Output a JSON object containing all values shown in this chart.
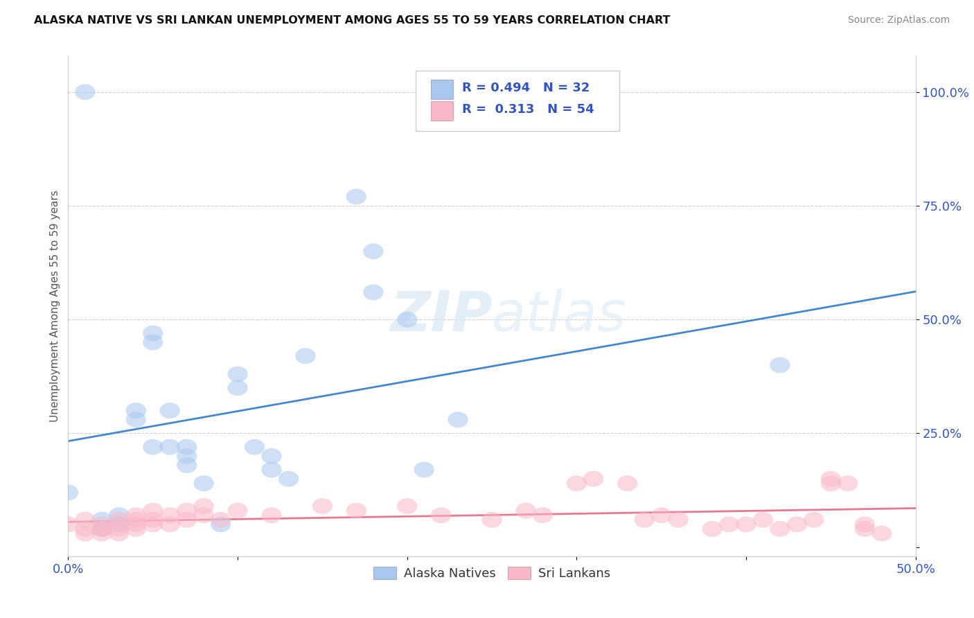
{
  "title": "ALASKA NATIVE VS SRI LANKAN UNEMPLOYMENT AMONG AGES 55 TO 59 YEARS CORRELATION CHART",
  "source": "Source: ZipAtlas.com",
  "ylabel": "Unemployment Among Ages 55 to 59 years",
  "xlim": [
    0.0,
    0.5
  ],
  "ylim": [
    -0.02,
    1.08
  ],
  "alaska_R": 0.494,
  "alaska_N": 32,
  "srilanka_R": 0.313,
  "srilanka_N": 54,
  "alaska_color": "#a8c8f0",
  "srilanka_color": "#f8b8c8",
  "alaska_line_color": "#4488cc",
  "srilanka_line_color": "#e87890",
  "alaska_points": [
    [
      0.01,
      1.0
    ],
    [
      0.0,
      0.12
    ],
    [
      0.02,
      0.06
    ],
    [
      0.02,
      0.04
    ],
    [
      0.03,
      0.05
    ],
    [
      0.03,
      0.07
    ],
    [
      0.04,
      0.28
    ],
    [
      0.04,
      0.3
    ],
    [
      0.05,
      0.47
    ],
    [
      0.05,
      0.45
    ],
    [
      0.05,
      0.22
    ],
    [
      0.06,
      0.22
    ],
    [
      0.06,
      0.3
    ],
    [
      0.07,
      0.2
    ],
    [
      0.07,
      0.22
    ],
    [
      0.07,
      0.18
    ],
    [
      0.08,
      0.14
    ],
    [
      0.09,
      0.05
    ],
    [
      0.1,
      0.38
    ],
    [
      0.1,
      0.35
    ],
    [
      0.11,
      0.22
    ],
    [
      0.12,
      0.2
    ],
    [
      0.12,
      0.17
    ],
    [
      0.13,
      0.15
    ],
    [
      0.14,
      0.42
    ],
    [
      0.17,
      0.77
    ],
    [
      0.18,
      0.65
    ],
    [
      0.18,
      0.56
    ],
    [
      0.2,
      0.5
    ],
    [
      0.21,
      0.17
    ],
    [
      0.23,
      0.28
    ],
    [
      0.42,
      0.4
    ]
  ],
  "srilanka_points": [
    [
      0.0,
      0.05
    ],
    [
      0.01,
      0.04
    ],
    [
      0.01,
      0.03
    ],
    [
      0.01,
      0.06
    ],
    [
      0.02,
      0.04
    ],
    [
      0.02,
      0.05
    ],
    [
      0.02,
      0.03
    ],
    [
      0.02,
      0.04
    ],
    [
      0.03,
      0.06
    ],
    [
      0.03,
      0.04
    ],
    [
      0.03,
      0.05
    ],
    [
      0.03,
      0.03
    ],
    [
      0.04,
      0.07
    ],
    [
      0.04,
      0.05
    ],
    [
      0.04,
      0.04
    ],
    [
      0.04,
      0.06
    ],
    [
      0.05,
      0.08
    ],
    [
      0.05,
      0.06
    ],
    [
      0.05,
      0.05
    ],
    [
      0.06,
      0.07
    ],
    [
      0.06,
      0.05
    ],
    [
      0.07,
      0.08
    ],
    [
      0.07,
      0.06
    ],
    [
      0.08,
      0.09
    ],
    [
      0.08,
      0.07
    ],
    [
      0.09,
      0.06
    ],
    [
      0.1,
      0.08
    ],
    [
      0.12,
      0.07
    ],
    [
      0.15,
      0.09
    ],
    [
      0.17,
      0.08
    ],
    [
      0.2,
      0.09
    ],
    [
      0.22,
      0.07
    ],
    [
      0.25,
      0.06
    ],
    [
      0.27,
      0.08
    ],
    [
      0.28,
      0.07
    ],
    [
      0.3,
      0.14
    ],
    [
      0.31,
      0.15
    ],
    [
      0.33,
      0.14
    ],
    [
      0.34,
      0.06
    ],
    [
      0.35,
      0.07
    ],
    [
      0.36,
      0.06
    ],
    [
      0.38,
      0.04
    ],
    [
      0.39,
      0.05
    ],
    [
      0.4,
      0.05
    ],
    [
      0.41,
      0.06
    ],
    [
      0.42,
      0.04
    ],
    [
      0.43,
      0.05
    ],
    [
      0.44,
      0.06
    ],
    [
      0.45,
      0.14
    ],
    [
      0.45,
      0.15
    ],
    [
      0.46,
      0.14
    ],
    [
      0.47,
      0.04
    ],
    [
      0.47,
      0.05
    ],
    [
      0.48,
      0.03
    ]
  ]
}
